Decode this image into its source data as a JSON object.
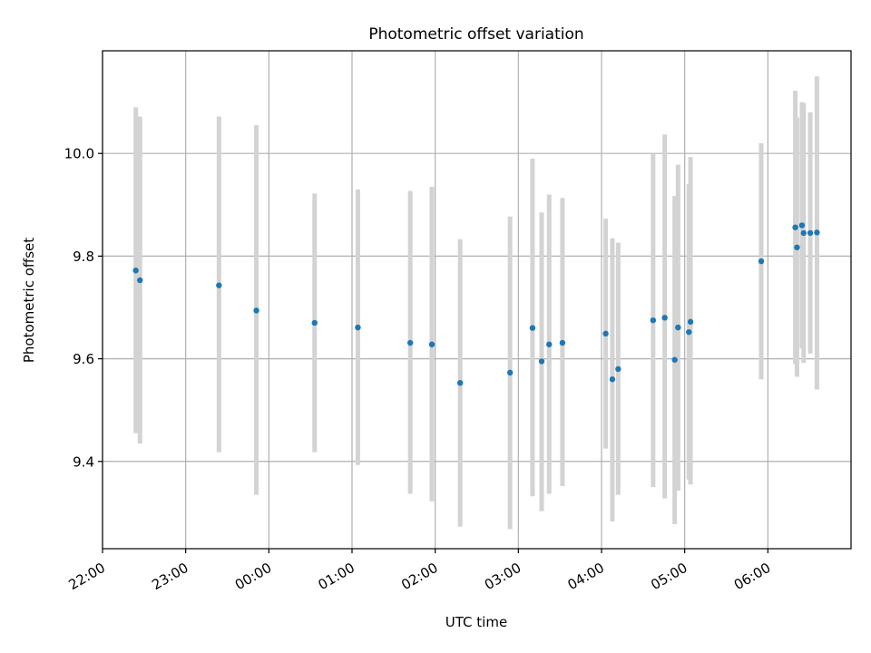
{
  "chart_data": {
    "type": "scatter",
    "title": "Photometric offset variation",
    "xlabel": "UTC time",
    "ylabel": "Photometric offset",
    "x_tick_labels": [
      "22:00",
      "23:00",
      "00:00",
      "01:00",
      "02:00",
      "03:00",
      "04:00",
      "05:00",
      "06:00"
    ],
    "x_ticks_hours": [
      0,
      1,
      2,
      3,
      4,
      5,
      6,
      7,
      8
    ],
    "x_axis_start": "22:00",
    "xlim_hours": [
      0,
      9.0
    ],
    "y_tick_labels": [
      "9.4",
      "9.6",
      "9.8",
      "10.0"
    ],
    "y_ticks": [
      9.4,
      9.6,
      9.8,
      10.0
    ],
    "ylim": [
      9.23,
      10.2
    ],
    "grid": true,
    "marker_color": "#1f77b4",
    "errorbar_color": "#d3d3d3",
    "points": [
      {
        "t": 0.4,
        "y": 9.772,
        "lo": 9.455,
        "hi": 10.09
      },
      {
        "t": 0.45,
        "y": 9.753,
        "lo": 9.435,
        "hi": 10.072
      },
      {
        "t": 1.4,
        "y": 9.743,
        "lo": 9.418,
        "hi": 10.072
      },
      {
        "t": 1.85,
        "y": 9.694,
        "lo": 9.335,
        "hi": 10.055
      },
      {
        "t": 2.55,
        "y": 9.67,
        "lo": 9.418,
        "hi": 9.922
      },
      {
        "t": 3.07,
        "y": 9.661,
        "lo": 9.393,
        "hi": 9.93
      },
      {
        "t": 3.7,
        "y": 9.631,
        "lo": 9.337,
        "hi": 9.927
      },
      {
        "t": 3.96,
        "y": 9.628,
        "lo": 9.322,
        "hi": 9.935
      },
      {
        "t": 4.3,
        "y": 9.553,
        "lo": 9.273,
        "hi": 9.833
      },
      {
        "t": 4.9,
        "y": 9.573,
        "lo": 9.268,
        "hi": 9.877
      },
      {
        "t": 5.17,
        "y": 9.66,
        "lo": 9.332,
        "hi": 9.99
      },
      {
        "t": 5.28,
        "y": 9.595,
        "lo": 9.303,
        "hi": 9.885
      },
      {
        "t": 5.37,
        "y": 9.628,
        "lo": 9.337,
        "hi": 9.92
      },
      {
        "t": 5.53,
        "y": 9.631,
        "lo": 9.352,
        "hi": 9.913
      },
      {
        "t": 6.05,
        "y": 9.649,
        "lo": 9.425,
        "hi": 9.873
      },
      {
        "t": 6.13,
        "y": 9.56,
        "lo": 9.283,
        "hi": 9.835
      },
      {
        "t": 6.2,
        "y": 9.58,
        "lo": 9.335,
        "hi": 9.826
      },
      {
        "t": 6.62,
        "y": 9.675,
        "lo": 9.35,
        "hi": 10.0
      },
      {
        "t": 6.76,
        "y": 9.68,
        "lo": 9.328,
        "hi": 10.037
      },
      {
        "t": 6.88,
        "y": 9.598,
        "lo": 9.278,
        "hi": 9.917
      },
      {
        "t": 6.92,
        "y": 9.661,
        "lo": 9.343,
        "hi": 9.978
      },
      {
        "t": 7.05,
        "y": 9.652,
        "lo": 9.365,
        "hi": 9.94
      },
      {
        "t": 7.07,
        "y": 9.672,
        "lo": 9.355,
        "hi": 9.993
      },
      {
        "t": 7.92,
        "y": 9.79,
        "lo": 9.56,
        "hi": 10.02
      },
      {
        "t": 8.33,
        "y": 9.856,
        "lo": 9.59,
        "hi": 10.122
      },
      {
        "t": 8.35,
        "y": 9.817,
        "lo": 9.565,
        "hi": 10.07
      },
      {
        "t": 8.41,
        "y": 9.86,
        "lo": 9.62,
        "hi": 10.1
      },
      {
        "t": 8.43,
        "y": 9.845,
        "lo": 9.592,
        "hi": 10.098
      },
      {
        "t": 8.51,
        "y": 9.845,
        "lo": 9.61,
        "hi": 10.08
      },
      {
        "t": 8.59,
        "y": 9.846,
        "lo": 9.54,
        "hi": 10.15
      }
    ]
  }
}
